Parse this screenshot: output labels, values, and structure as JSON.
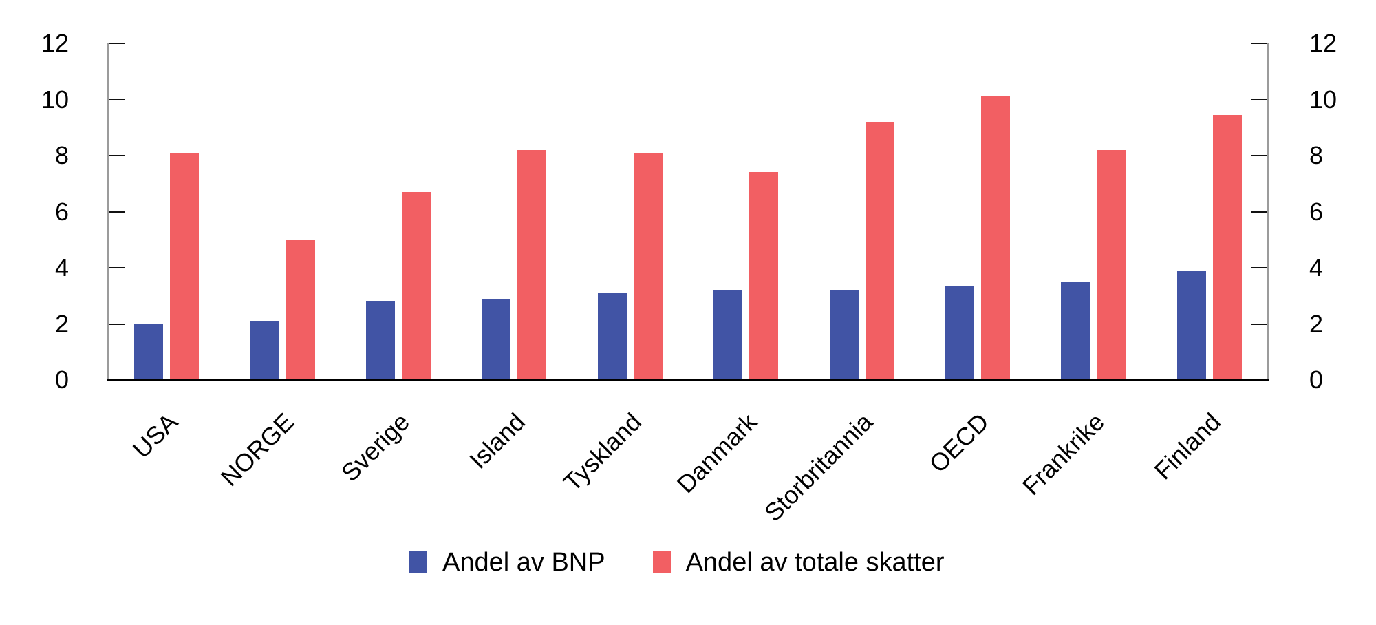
{
  "chart_data": {
    "type": "bar",
    "title": "",
    "categories": [
      "USA",
      "NORGE",
      "Sverige",
      "Island",
      "Tyskland",
      "Danmark",
      "Storbritannia",
      "OECD",
      "Frankrike",
      "Finland"
    ],
    "series": [
      {
        "name": "Andel av BNP",
        "color": "#4154A5",
        "values": [
          2.0,
          2.1,
          2.8,
          2.9,
          3.1,
          3.2,
          3.2,
          3.35,
          3.5,
          3.9
        ]
      },
      {
        "name": "Andel av totale skatter",
        "color": "#F25F63",
        "values": [
          8.1,
          5.0,
          6.7,
          8.2,
          8.1,
          7.4,
          9.2,
          10.1,
          8.2,
          9.45
        ]
      }
    ],
    "xlabel": "",
    "ylabel": "",
    "ylim": [
      0,
      12
    ],
    "yticks": [
      0,
      2,
      4,
      6,
      8,
      10,
      12
    ],
    "y_axis_sides": [
      "left",
      "right"
    ],
    "grid": false,
    "legend_position": "bottom",
    "category_label_rotation_deg": 45
  },
  "legend": {
    "items": [
      {
        "label": "Andel av BNP",
        "color": "#4154A5"
      },
      {
        "label": "Andel av totale skatter",
        "color": "#F25F63"
      }
    ]
  }
}
